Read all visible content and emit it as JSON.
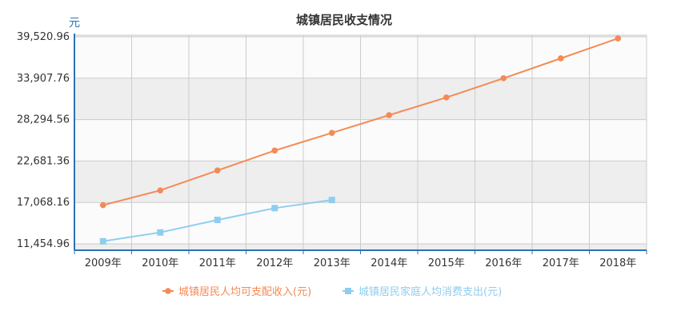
{
  "chart_data": {
    "type": "line",
    "title": "城镇居民收支情况",
    "ylabel": "元",
    "xlabel": "",
    "categories": [
      "2009年",
      "2010年",
      "2011年",
      "2012年",
      "2013年",
      "2014年",
      "2015年",
      "2016年",
      "2017年",
      "2018年"
    ],
    "ylim": [
      11454.96,
      39520.96
    ],
    "yticks": [
      "11,454.96",
      "17,068.16",
      "22,681.36",
      "28,294.56",
      "33,907.76",
      "39,520.96"
    ],
    "ytick_values": [
      11454.96,
      17068.16,
      22681.36,
      28294.56,
      33907.76,
      39520.96
    ],
    "grid": true,
    "legend_position": "bottom",
    "series": [
      {
        "name": "城镇居民人均可支配收入(元)",
        "color": "#f58a55",
        "marker": "circle",
        "values": [
          16700,
          18700,
          21400,
          24100,
          26500,
          28900,
          31300,
          33900,
          36600,
          39300
        ]
      },
      {
        "name": "城镇居民家庭人均消费支出(元)",
        "color": "#8fcdf0",
        "marker": "square",
        "values": [
          11800,
          13000,
          14700,
          16300,
          17400,
          null,
          null,
          null,
          null,
          null
        ]
      }
    ],
    "colors": {
      "axis": "#2b72b8",
      "grid": "#cccccc",
      "band_dark": "#eeeeee",
      "band_light": "#fbfbfb",
      "title": "#333333",
      "tick_text": "#333333"
    }
  }
}
